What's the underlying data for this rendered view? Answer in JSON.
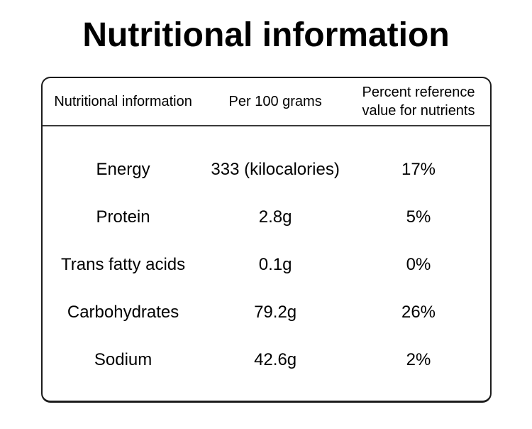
{
  "title": "Nutritional information",
  "table": {
    "headers": [
      "Nutritional information",
      "Per 100 grams",
      "Percent reference value for nutrients"
    ],
    "rows": [
      {
        "nutrient": "Energy",
        "amount": "333 (kilocalories)",
        "percent": "17%"
      },
      {
        "nutrient": "Protein",
        "amount": "2.8g",
        "percent": "5%"
      },
      {
        "nutrient": "Trans fatty acids",
        "amount": "0.1g",
        "percent": "0%"
      },
      {
        "nutrient": "Carbohydrates",
        "amount": "79.2g",
        "percent": "26%"
      },
      {
        "nutrient": "Sodium",
        "amount": "42.6g",
        "percent": "2%"
      }
    ]
  },
  "colors": {
    "text": "#000000",
    "border": "#1c1c1c",
    "header_rule": "#3a3a3a",
    "background": "#ffffff"
  },
  "chart_data": {
    "type": "table",
    "title": "Nutritional information",
    "columns": [
      "Nutritional information",
      "Per 100 grams",
      "Percent reference value for nutrients"
    ],
    "rows": [
      [
        "Energy",
        "333 (kilocalories)",
        "17%"
      ],
      [
        "Protein",
        "2.8g",
        "5%"
      ],
      [
        "Trans fatty acids",
        "0.1g",
        "0%"
      ],
      [
        "Carbohydrates",
        "79.2g",
        "26%"
      ],
      [
        "Sodium",
        "42.6g",
        "2%"
      ]
    ]
  }
}
